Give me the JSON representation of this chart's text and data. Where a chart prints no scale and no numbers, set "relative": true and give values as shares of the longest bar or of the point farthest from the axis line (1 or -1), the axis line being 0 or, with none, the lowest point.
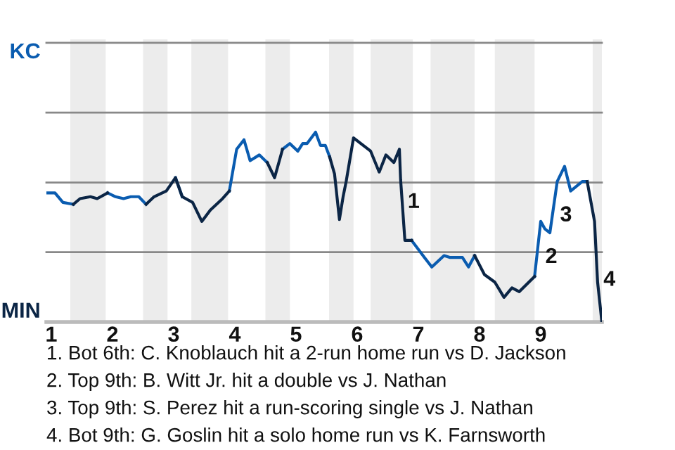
{
  "chart_data": {
    "type": "line",
    "relative": true,
    "x": [
      0.92,
      1.06,
      1.19,
      1.36,
      1.47,
      1.64,
      1.75,
      1.92,
      2.05,
      2.18,
      2.3,
      2.43,
      2.55,
      2.68,
      2.88,
      3.03,
      3.14,
      3.31,
      3.46,
      3.6,
      3.8,
      3.91,
      4.03,
      4.15,
      4.25,
      4.4,
      4.53,
      4.65,
      4.78,
      4.9,
      5.03,
      5.11,
      5.18,
      5.32,
      5.4,
      5.48,
      5.55,
      5.63,
      5.71,
      5.77,
      5.82,
      5.94,
      6.22,
      6.36,
      6.47,
      6.6,
      6.69,
      6.71,
      6.78,
      6.89,
      7.1,
      7.22,
      7.42,
      7.52,
      7.72,
      7.82,
      7.92,
      8.08,
      8.25,
      8.4,
      8.53,
      8.65,
      8.9,
      9.0,
      9.07,
      9.15,
      9.27,
      9.39,
      9.49,
      9.68,
      9.76,
      9.88,
      9.93,
      10.0
    ],
    "xlim": [
      0.92,
      10
    ],
    "xticks": [
      1,
      2,
      3,
      4,
      5,
      6,
      7,
      8,
      9
    ],
    "series": [
      {
        "color": "#0a5cb0",
        "values": [
          0.68,
          0.68,
          0.63,
          0.62,
          null,
          null,
          null,
          0.68,
          0.66,
          0.65,
          0.66,
          0.66,
          0.62,
          null,
          null,
          0.76,
          0.66,
          null,
          null,
          null,
          null,
          0.69,
          0.91,
          0.96,
          0.85,
          0.88,
          0.84,
          null,
          0.91,
          0.94,
          0.9,
          0.94,
          0.94,
          1,
          0.93,
          0.93,
          0.87,
          null,
          null,
          null,
          null,
          null,
          null,
          null,
          null,
          null,
          null,
          null,
          null,
          0.43,
          0.34,
          0.29,
          0.35,
          0.34,
          0.34,
          0.29,
          0.35,
          null,
          null,
          null,
          null,
          null,
          0.24,
          0.53,
          0.49,
          0.47,
          0.74,
          0.82,
          0.69,
          0.74,
          0.74,
          null,
          null,
          null
        ]
      },
      {
        "color": "#0b2545",
        "values": [
          null,
          null,
          null,
          0.62,
          0.65,
          0.66,
          0.65,
          0.68,
          null,
          null,
          null,
          null,
          0.62,
          0.66,
          0.69,
          0.76,
          0.66,
          0.63,
          0.53,
          0.59,
          0.65,
          0.69,
          null,
          null,
          null,
          null,
          0.84,
          0.76,
          0.91,
          null,
          null,
          null,
          null,
          null,
          null,
          null,
          0.87,
          0.78,
          0.54,
          0.66,
          0.74,
          0.97,
          0.9,
          0.79,
          0.88,
          0.84,
          0.91,
          0.75,
          0.43,
          0.43,
          null,
          null,
          null,
          null,
          null,
          null,
          0.35,
          0.25,
          0.21,
          0.13,
          0.18,
          0.16,
          0.24,
          null,
          null,
          null,
          null,
          null,
          null,
          null,
          0.74,
          0.53,
          0.21,
          0
        ]
      }
    ],
    "marker": "none",
    "line_style": "solid",
    "legend": false,
    "ref_lines": [
      {
        "axis": "y",
        "value": 0.368,
        "color": "#888888"
      },
      {
        "axis": "y",
        "value": 0.735,
        "color": "#888888"
      },
      {
        "axis": "y",
        "value": 1.103,
        "color": "#888888"
      },
      {
        "axis": "y",
        "value": 1.471,
        "label": "KC",
        "color": "#888888"
      }
    ],
    "bands": [
      {
        "axis": "x",
        "from": 1.31,
        "to": 1.89,
        "color": "#ececec"
      },
      {
        "axis": "x",
        "from": 2.5,
        "to": 2.9,
        "color": "#ececec"
      },
      {
        "axis": "x",
        "from": 3.29,
        "to": 3.89,
        "color": "#ececec"
      },
      {
        "axis": "x",
        "from": 4.5,
        "to": 4.9,
        "color": "#ececec"
      },
      {
        "axis": "x",
        "from": 5.54,
        "to": 5.94,
        "color": "#ececec"
      },
      {
        "axis": "x",
        "from": 6.22,
        "to": 6.91,
        "color": "#ececec"
      },
      {
        "axis": "x",
        "from": 7.2,
        "to": 7.92,
        "color": "#ececec"
      },
      {
        "axis": "x",
        "from": 8.25,
        "to": 8.9,
        "color": "#ececec"
      },
      {
        "axis": "x",
        "from": 9.85,
        "to": 10,
        "color": "#ececec"
      }
    ],
    "annotations": [
      "MIN",
      {
        "text": "1",
        "x": 6.73,
        "y": 0.63
      },
      {
        "text": "2",
        "x": 8.98,
        "y": 0.34
      },
      {
        "text": "3",
        "x": 9.22,
        "y": 0.56
      },
      {
        "text": "4",
        "x": 9.93,
        "y": 0.22
      },
      "1. Bot 6th: C. Knoblauch hit a 2-run home run vs D. Jackson",
      "2. Top 9th: B. Witt Jr. hit a double vs J. Nathan",
      "3. Top 9th: S. Perez hit a run-scoring single vs J. Nathan",
      "4. Bot 9th: G. Goslin hit a solo home run vs K. Farnsworth"
    ]
  }
}
